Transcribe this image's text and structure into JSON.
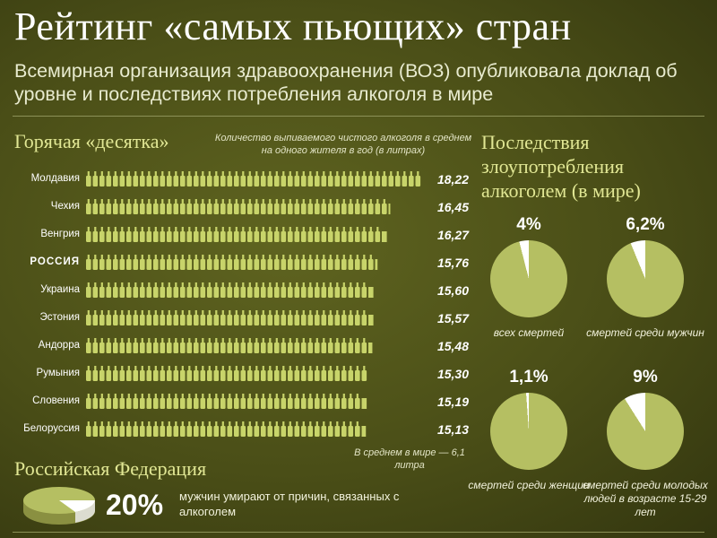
{
  "title": "Рейтинг «самых пьющих» стран",
  "subtitle": "Всемирная организация здравоохранения (ВОЗ) опубликовала доклад об уровне и последствиях потребления алкоголя в мире",
  "ranking": {
    "heading": "Горячая «десятка»",
    "unit_note": "Количество выпиваемого чистого алкоголя в среднем на одного жителя в год (в литрах)",
    "world_avg_note": "В среднем в мире — 6,1 литра"
  },
  "consequences": {
    "heading": "Последствия злоупотребления алкоголем (в мире)",
    "items": [
      {
        "pct_label": "4%",
        "value": 4,
        "label": "всех смертей"
      },
      {
        "pct_label": "6,2%",
        "value": 6.2,
        "label": "смертей среди мужчин"
      },
      {
        "pct_label": "1,1%",
        "value": 1.1,
        "label": "смертей среди женщин"
      },
      {
        "pct_label": "9%",
        "value": 9,
        "label": "смертей среди молодых людей в возрасте 15-29 лет"
      }
    ]
  },
  "russia": {
    "heading": "Российская Федерация",
    "pct_label": "20%",
    "value": 20,
    "text": "мужчин умирают от причин, связанных с алкоголем"
  },
  "colors": {
    "bottle": "#c8d46a",
    "pie": "#b5bf62",
    "pie_slice": "#ffffff",
    "heading": "#e1e794"
  },
  "chart_data": [
    {
      "type": "bar",
      "categories": [
        "Молдавия",
        "Чехия",
        "Венгрия",
        "РОССИЯ",
        "Украина",
        "Эстония",
        "Андорра",
        "Румыния",
        "Словения",
        "Белоруссия"
      ],
      "values": [
        18.22,
        16.45,
        16.27,
        15.76,
        15.6,
        15.57,
        15.48,
        15.3,
        15.19,
        15.13
      ],
      "value_labels": [
        "18,22",
        "16,45",
        "16,27",
        "15,76",
        "15,60",
        "15,57",
        "15,48",
        "15,30",
        "15,19",
        "15,13"
      ],
      "title": "Горячая «десятка»"
    },
    {
      "type": "pie",
      "categories": [
        "всех смертей",
        "смертей среди мужчин",
        "смертей среди женщин",
        "смертей среди молодых людей в возрасте 15-29 лет"
      ],
      "values": [
        4,
        6.2,
        1.1,
        9
      ]
    }
  ]
}
